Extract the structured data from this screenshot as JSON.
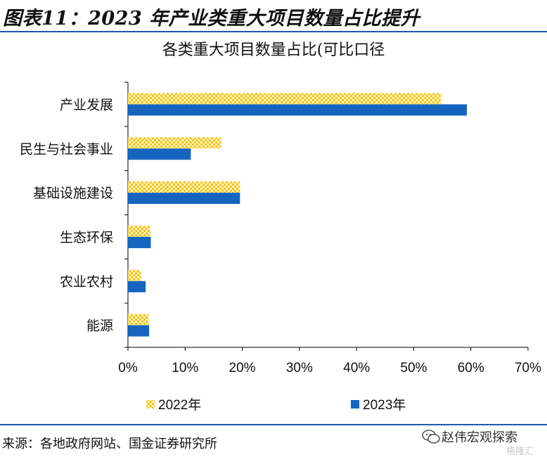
{
  "figure": {
    "title": "图表11：2023 年产业类重大项目数量占比提升",
    "source": "来源：各地政府网站、国金证券研究所"
  },
  "watermark": {
    "name": "赵伟宏观探索",
    "sub": "格隆汇",
    "icon": "wechat-icon"
  },
  "chart_data": {
    "type": "bar",
    "orientation": "horizontal",
    "title": "各类重大项目数量占比(可比口径",
    "categories": [
      "产业发展",
      "民生与社会事业",
      "基础设施建设",
      "生态环保",
      "农业农村",
      "能源"
    ],
    "series": [
      {
        "name": "2022年",
        "values": [
          54.8,
          16.3,
          19.6,
          3.9,
          2.3,
          3.6
        ],
        "color": "#f5c518",
        "pattern": "checker"
      },
      {
        "name": "2023年",
        "values": [
          59.3,
          11.0,
          19.6,
          4.0,
          3.1,
          3.7
        ],
        "color": "#1565c0",
        "pattern": "solid"
      }
    ],
    "xlim": [
      0,
      70
    ],
    "ticks": [
      0,
      10,
      20,
      30,
      40,
      50,
      60,
      70
    ],
    "tick_labels": [
      "0%",
      "10%",
      "20%",
      "30%",
      "40%",
      "50%",
      "60%",
      "70%"
    ],
    "grid": false,
    "legend": "bottom"
  }
}
